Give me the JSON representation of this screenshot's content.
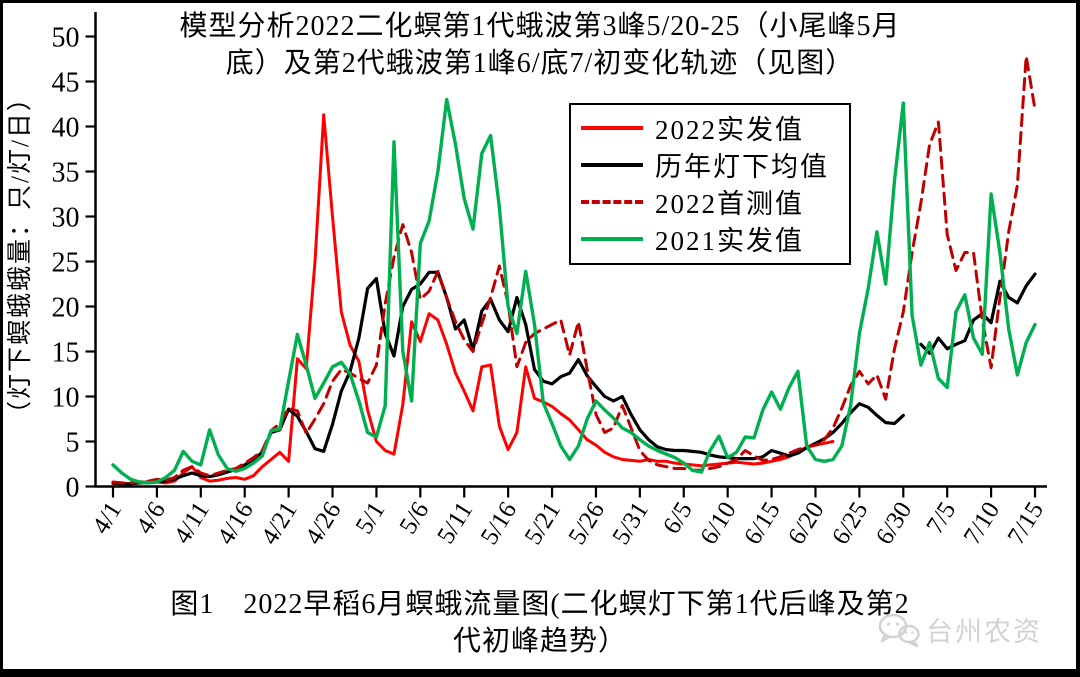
{
  "title": {
    "line1": "模型分析2022二化螟第1代蛾波第3峰5/20-25（小尾峰5月",
    "line2": "底）及第2代蛾波第1峰6/底7/初变化轨迹（见图）"
  },
  "y_axis": {
    "label": "（灯下螟蛾蛾量：只/灯/日）"
  },
  "legend": [
    {
      "label": "2022实发值",
      "color": "#ff0000",
      "style": "solid"
    },
    {
      "label": "历年灯下均值",
      "color": "#000000",
      "style": "solid"
    },
    {
      "label": "2022首测值",
      "color": "#c00000",
      "style": "dashed"
    },
    {
      "label": "2021实发值",
      "color": "#00b050",
      "style": "solid"
    }
  ],
  "caption": {
    "line1": "图1　2022早稻6月螟蛾流量图(二化螟灯下第1代后峰及第2",
    "line2": "代初峰趋势）"
  },
  "watermark": {
    "icon": "wechat-icon",
    "text": "台州农资"
  },
  "chart_data": {
    "type": "line",
    "title": "模型分析2022二化螟第1代蛾波第3峰5/20-25（小尾峰5月底）及第2代蛾波第1峰6/底7/初变化轨迹（见图）",
    "ylabel": "（灯下螟蛾蛾量：只/灯/日）",
    "ylim": [
      0,
      50
    ],
    "y_ticks": [
      0,
      5,
      10,
      15,
      20,
      25,
      30,
      35,
      40,
      45,
      50
    ],
    "grid": false,
    "legend_position": "inside-top-right",
    "x_start": "4/1",
    "x_end": "7/15",
    "x_interval_days": 1,
    "x_tick_every_days": 5,
    "x_tick_labels": [
      "4/1",
      "4/6",
      "4/11",
      "4/16",
      "4/21",
      "4/26",
      "5/1",
      "5/6",
      "5/11",
      "5/16",
      "5/21",
      "5/26",
      "5/31",
      "6/5",
      "6/10",
      "6/15",
      "6/20",
      "6/25",
      "6/30",
      "7/5",
      "7/10",
      "7/15"
    ],
    "series": [
      {
        "name": "2022实发值",
        "color": "#ff0000",
        "style": "solid",
        "width": 3,
        "values": [
          0.3,
          0.3,
          0.3,
          0.4,
          0.4,
          0.5,
          0.4,
          0.6,
          1.5,
          2.2,
          1.0,
          0.6,
          0.7,
          0.9,
          1.0,
          0.8,
          1.2,
          2.2,
          3.0,
          3.8,
          2.8,
          14.2,
          13.1,
          25.0,
          41.3,
          30.0,
          19.4,
          15.7,
          13.9,
          8.5,
          5.0,
          4.0,
          3.6,
          9.1,
          18.3,
          16.1,
          19.2,
          18.5,
          15.8,
          12.6,
          10.6,
          8.4,
          13.3,
          13.5,
          6.7,
          4.1,
          6.0,
          13.3,
          9.8,
          9.4,
          8.9,
          8.1,
          7.4,
          6.3,
          5.2,
          4.6,
          3.8,
          3.3,
          3.0,
          2.9,
          2.8,
          3.0,
          2.8,
          2.8,
          2.6,
          2.5,
          2.4,
          2.3,
          2.4,
          2.5,
          2.6,
          2.7,
          2.6,
          2.5,
          2.6,
          2.8,
          3.0,
          3.3,
          3.8,
          4.4,
          4.6,
          4.8,
          5.0,
          null,
          null,
          null,
          null,
          null,
          null,
          null,
          null,
          null,
          null,
          null,
          null,
          null,
          null,
          null,
          null,
          null,
          null,
          null,
          null,
          null,
          null,
          null
        ]
      },
      {
        "name": "历年灯下均值",
        "color": "#000000",
        "style": "solid",
        "width": 3.2,
        "values": [
          0.4,
          0.3,
          0.3,
          0.4,
          0.5,
          0.6,
          0.6,
          0.8,
          1.2,
          1.5,
          1.2,
          1.1,
          1.3,
          1.6,
          1.9,
          2.4,
          3.0,
          3.8,
          6.0,
          6.3,
          8.6,
          7.8,
          6.1,
          4.2,
          3.9,
          6.9,
          10.6,
          12.8,
          16.5,
          22.0,
          23.1,
          17.0,
          14.5,
          20.0,
          21.9,
          22.5,
          23.8,
          23.8,
          21.0,
          17.5,
          18.5,
          15.2,
          19.5,
          20.8,
          18.5,
          17.2,
          21.0,
          18.0,
          13.0,
          11.7,
          11.4,
          12.2,
          12.6,
          14.1,
          12.3,
          11.1,
          10.0,
          9.5,
          10.0,
          8.0,
          6.3,
          5.2,
          4.4,
          4.1,
          4.0,
          4.0,
          3.9,
          3.8,
          3.5,
          3.3,
          3.2,
          3.1,
          3.1,
          3.1,
          3.3,
          4.0,
          3.7,
          3.4,
          3.7,
          4.3,
          4.8,
          5.3,
          6.0,
          7.0,
          8.2,
          9.2,
          8.8,
          7.9,
          7.1,
          7.0,
          7.9,
          null,
          15.8,
          14.8,
          16.5,
          15.3,
          15.8,
          16.2,
          18.5,
          19.2,
          18.2,
          22.8,
          21.0,
          20.4,
          22.3,
          23.6
        ]
      },
      {
        "name": "2022首测值",
        "color": "#c00000",
        "style": "dashed",
        "width": 3,
        "values": [
          0.5,
          0.4,
          0.4,
          0.5,
          0.6,
          0.8,
          0.7,
          1.0,
          1.8,
          2.2,
          1.5,
          1.2,
          1.5,
          1.8,
          2.0,
          2.6,
          3.2,
          4.0,
          6.2,
          7.0,
          8.7,
          8.4,
          5.9,
          7.5,
          9.2,
          11.7,
          13.0,
          12.6,
          12.0,
          11.5,
          13.5,
          20.3,
          25.5,
          29.1,
          26.0,
          20.8,
          21.7,
          23.9,
          21.0,
          18.3,
          16.3,
          15.0,
          18.1,
          21.0,
          24.5,
          20.3,
          13.3,
          16.0,
          17.0,
          17.5,
          18.0,
          18.5,
          14.6,
          18.3,
          13.0,
          8.0,
          6.0,
          6.5,
          9.0,
          6.5,
          4.0,
          2.9,
          2.4,
          2.2,
          2.0,
          2.0,
          1.8,
          1.8,
          2.0,
          2.2,
          2.6,
          3.0,
          4.0,
          3.4,
          2.9,
          3.0,
          3.3,
          3.7,
          4.1,
          4.4,
          4.6,
          5.2,
          6.5,
          8.7,
          11.2,
          12.8,
          11.4,
          12.4,
          9.7,
          15.3,
          19.4,
          26.0,
          31.5,
          38.0,
          40.5,
          28.0,
          24.0,
          26.0,
          26.0,
          18.5,
          13.2,
          21.0,
          28.3,
          33.5,
          47.8,
          41.9
        ]
      },
      {
        "name": "2021实发值",
        "color": "#00b050",
        "style": "solid",
        "width": 3.4,
        "values": [
          2.4,
          1.5,
          0.8,
          0.5,
          0.4,
          0.5,
          1.0,
          1.8,
          3.9,
          2.8,
          2.4,
          6.3,
          3.5,
          2.0,
          1.7,
          2.0,
          2.6,
          3.4,
          6.2,
          6.4,
          11.7,
          16.9,
          13.5,
          9.8,
          11.5,
          13.3,
          13.8,
          12.5,
          9.5,
          6.0,
          5.5,
          9.0,
          38.3,
          15.0,
          9.5,
          27.0,
          29.5,
          35.0,
          43.0,
          38.0,
          32.0,
          28.6,
          37.0,
          39.0,
          31.0,
          20.0,
          17.0,
          23.9,
          18.0,
          9.3,
          7.0,
          4.5,
          3.0,
          4.5,
          7.5,
          9.5,
          8.5,
          7.6,
          6.5,
          6.0,
          5.2,
          4.5,
          4.0,
          3.6,
          3.2,
          2.6,
          1.8,
          1.6,
          4.0,
          5.6,
          3.2,
          3.8,
          5.5,
          5.4,
          8.5,
          10.5,
          8.6,
          11.0,
          12.8,
          4.5,
          3.0,
          2.8,
          3.0,
          4.5,
          9.0,
          17.0,
          22.0,
          28.3,
          22.5,
          34.0,
          42.6,
          19.0,
          13.5,
          16.0,
          12.0,
          11.0,
          19.4,
          21.3,
          16.5,
          14.7,
          32.5,
          26.0,
          17.5,
          12.4,
          16.0,
          18.0
        ]
      }
    ]
  }
}
